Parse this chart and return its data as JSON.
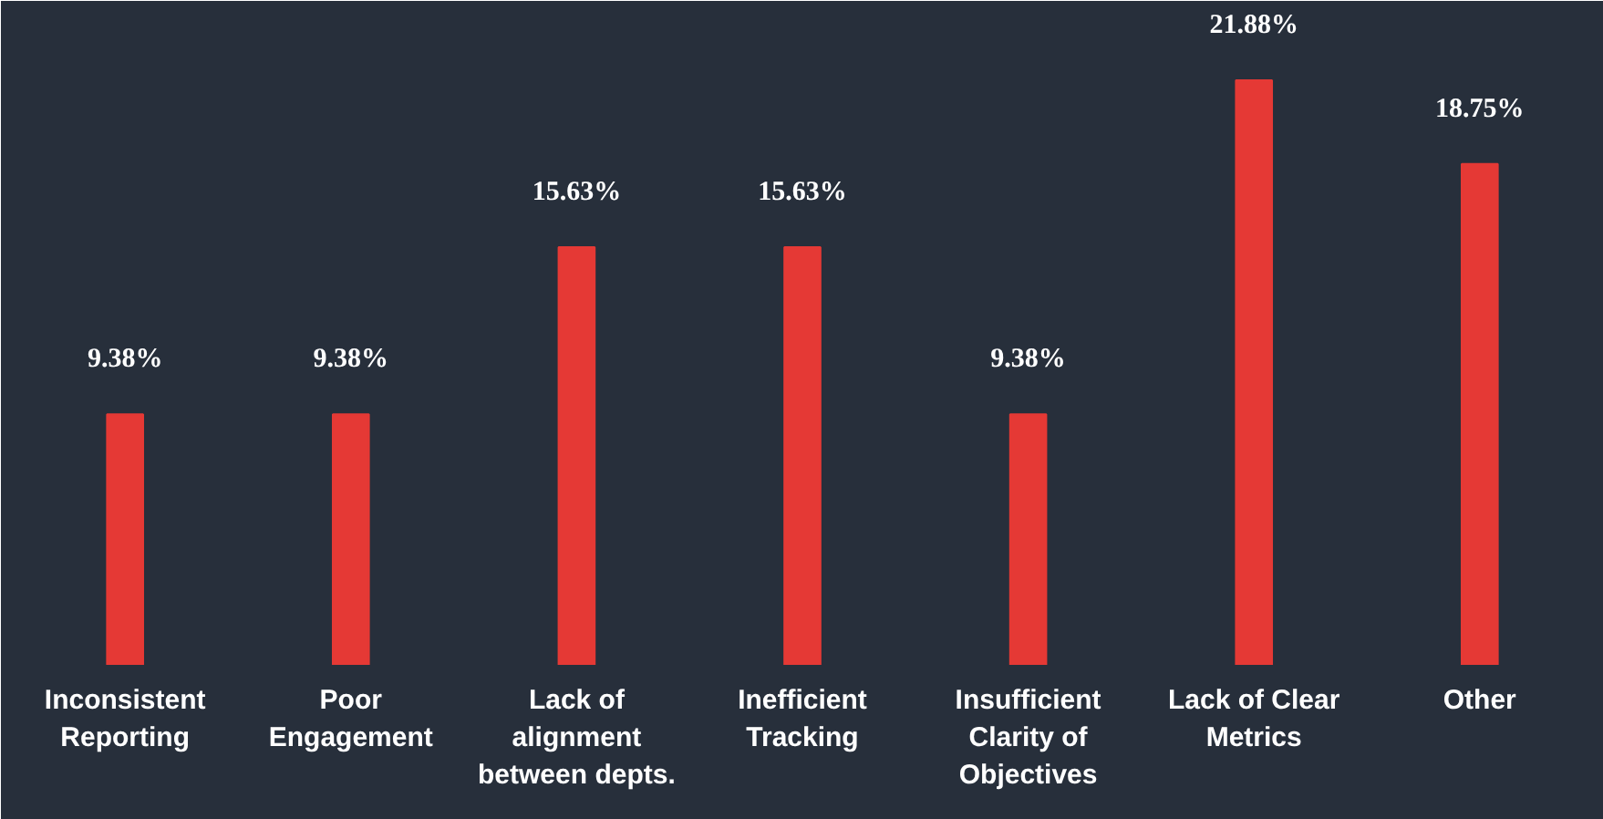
{
  "chart_data": {
    "type": "bar",
    "categories": [
      "Inconsistent Reporting",
      "Poor Engagement",
      "Lack of alignment between depts.",
      "Inefficient Tracking",
      "Insufficient Clarity of Objectives",
      "Lack of Clear Metrics",
      "Other"
    ],
    "values": [
      9.38,
      9.38,
      15.63,
      15.63,
      9.38,
      21.88,
      18.75
    ],
    "value_labels": [
      "9.38%",
      "9.38%",
      "15.63%",
      "15.63%",
      "9.38%",
      "21.88%",
      "18.75%"
    ],
    "color": "#e53935"
  }
}
